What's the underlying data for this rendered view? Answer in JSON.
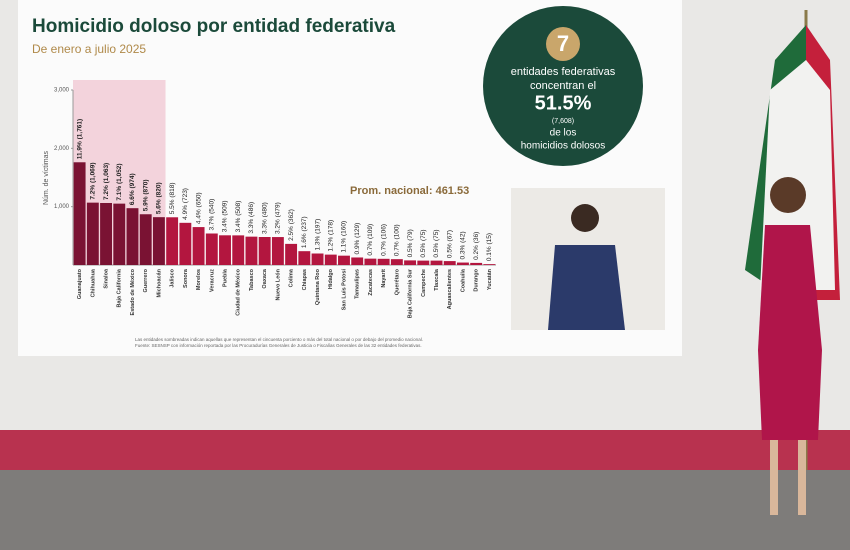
{
  "chart_data": {
    "type": "bar",
    "title": "Homicidio doloso por entidad federativa",
    "subtitle": "De enero a julio 2025",
    "y_label": "Núm. de víctimas",
    "annotation": "Prom. nacional: 461.53",
    "categories": [
      "Guanajuato",
      "Chihuahua",
      "Sinaloa",
      "Baja California",
      "Estado de México",
      "Guerrero",
      "Michoacán",
      "Jalisco",
      "Sonora",
      "Morelos",
      "Veracruz",
      "Puebla",
      "Ciudad de México",
      "Tabasco",
      "Oaxaca",
      "Nuevo León",
      "Colima",
      "Chiapas",
      "Quintana Roo",
      "Hidalgo",
      "San Luis Potosí",
      "Tamaulipas",
      "Zacatecas",
      "Nayarit",
      "Querétaro",
      "Baja California Sur",
      "Campeche",
      "Tlaxcala",
      "Aguascalientes",
      "Coahuila",
      "Durango",
      "Yucatán"
    ],
    "values": [
      1761,
      1069,
      1063,
      1052,
      974,
      870,
      820,
      818,
      723,
      650,
      540,
      509,
      508,
      486,
      480,
      479,
      362,
      237,
      197,
      178,
      160,
      129,
      109,
      106,
      100,
      79,
      75,
      75,
      67,
      42,
      36,
      15
    ],
    "value_labels": [
      "11.9% (1,761)",
      "7.2% (1,069)",
      "7.2% (1,063)",
      "7.1% (1,052)",
      "6.6% (974)",
      "5.9% (870)",
      "5.6% (820)",
      "5.5% (818)",
      "4.9% (723)",
      "4.4% (650)",
      "3.7% (540)",
      "3.4% (509)",
      "3.4% (508)",
      "3.3% (486)",
      "3.3% (480)",
      "3.2% (479)",
      "2.5% (362)",
      "1.6% (237)",
      "1.3% (197)",
      "1.2% (178)",
      "1.1% (160)",
      "0.9% (129)",
      "0.7% (109)",
      "0.7% (106)",
      "0.7% (100)",
      "0.5% (79)",
      "0.5% (75)",
      "0.5% (75)",
      "0.5% (67)",
      "0.3% (42)",
      "0.2% (36)",
      "0.1% (15)"
    ],
    "color": "#b3163f",
    "highlight_color": "#7a1233",
    "shade_color": "#f3d3dc",
    "ylim": [
      0,
      3000
    ],
    "yticks": [
      {
        "value": 1000,
        "label": "1,000"
      },
      {
        "value": 2000,
        "label": "2,000"
      },
      {
        "value": 3000,
        "label": "3,000"
      }
    ],
    "callout": {
      "count": 7,
      "line1": "entidades federativas",
      "line2": "concentran el",
      "percent": "51.5%",
      "total": "(7,608)",
      "line3": "de los",
      "line4": "homicidios dolosos"
    },
    "notes": [
      "Las entidades sombreadas indican aquellas que representan el cincuenta porciento o más del total nacional o por debajo del promedio nacional.",
      "Fuente: SESNSP con información reportada por las Procuradurías Generales de Justicia o Fiscalías Generales de las 32 entidades federativas."
    ]
  }
}
